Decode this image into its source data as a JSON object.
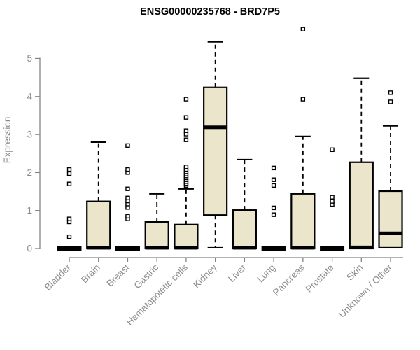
{
  "chart_data": {
    "type": "boxplot",
    "title": "ENSG00000235768 - BRD7P5",
    "xlabel": "",
    "ylabel": "Expression",
    "ylim": [
      0,
      5.8
    ],
    "yticks": [
      0,
      1,
      2,
      3,
      4,
      5
    ],
    "grid": false,
    "legend": "none",
    "colors": {
      "box_fill": "#ebe6cb",
      "box_stroke": "#000000",
      "median": "#000000",
      "whisker": "#000000",
      "outlier_fill": "#ffffff",
      "axis": "#848484",
      "tick_label": "#8c8c8c",
      "title": "#000000"
    },
    "categories": [
      "Bladder",
      "Brain",
      "Breast",
      "Gastric",
      "Hematopoietic cells",
      "Kidney",
      "Liver",
      "Lung",
      "Pancreas",
      "Prostate",
      "Skin",
      "Unknown / Other"
    ],
    "series": [
      {
        "name": "Bladder",
        "q1": 0,
        "median": 0,
        "q3": 0.02,
        "whisker_low": 0,
        "whisker_high": 0.02,
        "outliers": [
          0.31,
          0.7,
          0.78,
          1.7,
          1.97,
          2.08
        ]
      },
      {
        "name": "Brain",
        "q1": 0,
        "median": 0.02,
        "q3": 1.24,
        "whisker_low": 0,
        "whisker_high": 2.8,
        "outliers": []
      },
      {
        "name": "Breast",
        "q1": 0,
        "median": 0,
        "q3": 0.02,
        "whisker_low": 0,
        "whisker_high": 0.02,
        "outliers": [
          0.78,
          0.85,
          1.08,
          1.17,
          1.25,
          1.33,
          1.57,
          2.0,
          2.08,
          2.71
        ]
      },
      {
        "name": "Gastric",
        "q1": 0,
        "median": 0.02,
        "q3": 0.7,
        "whisker_low": 0,
        "whisker_high": 1.44,
        "outliers": []
      },
      {
        "name": "Hematopoietic cells",
        "q1": 0,
        "median": 0.02,
        "q3": 0.63,
        "whisker_low": 0,
        "whisker_high": 1.57,
        "outliers": [
          1.66,
          1.71,
          1.76,
          1.81,
          1.86,
          1.91,
          1.96,
          2.02,
          2.08,
          2.15,
          2.86,
          3.01,
          3.1,
          3.45,
          3.93
        ]
      },
      {
        "name": "Kidney",
        "q1": 0.88,
        "median": 3.19,
        "q3": 4.24,
        "whisker_low": 0.02,
        "whisker_high": 5.44,
        "outliers": []
      },
      {
        "name": "Liver",
        "q1": 0,
        "median": 0.02,
        "q3": 1.01,
        "whisker_low": 0,
        "whisker_high": 2.34,
        "outliers": []
      },
      {
        "name": "Lung",
        "q1": 0,
        "median": 0,
        "q3": 0.02,
        "whisker_low": 0,
        "whisker_high": 0.02,
        "outliers": [
          0.89,
          1.07,
          1.66,
          1.81,
          2.12
        ]
      },
      {
        "name": "Pancreas",
        "q1": 0,
        "median": 0.02,
        "q3": 1.44,
        "whisker_low": 0,
        "whisker_high": 2.95,
        "outliers": [
          3.93,
          5.77
        ]
      },
      {
        "name": "Prostate",
        "q1": 0,
        "median": 0,
        "q3": 0.02,
        "whisker_low": 0,
        "whisker_high": 0.02,
        "outliers": [
          1.16,
          1.24,
          1.35,
          2.6
        ]
      },
      {
        "name": "Skin",
        "q1": 0,
        "median": 0.03,
        "q3": 2.27,
        "whisker_low": 0,
        "whisker_high": 4.48,
        "outliers": []
      },
      {
        "name": "Unknown / Other",
        "q1": 0.02,
        "median": 0.4,
        "q3": 1.51,
        "whisker_low": 0.02,
        "whisker_high": 3.23,
        "outliers": [
          3.86,
          4.1
        ]
      }
    ]
  }
}
